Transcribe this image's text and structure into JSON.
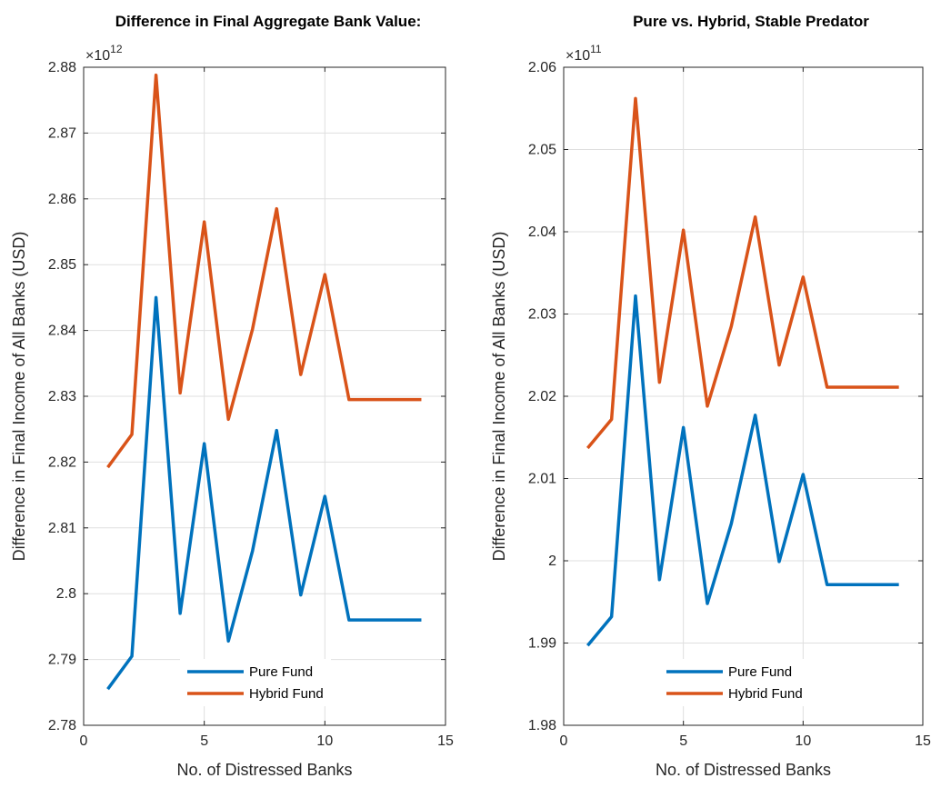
{
  "chart_data": [
    {
      "type": "line",
      "title": "Difference in Final Aggregate Bank Value:",
      "xlabel": "No. of Distressed Banks",
      "ylabel": "Difference in Final Income of All Banks (USD)",
      "exponent_base": "×10",
      "exponent_power": "12",
      "xlim": [
        0,
        15
      ],
      "ylim": [
        2.78,
        2.88
      ],
      "x_ticks": [
        0,
        5,
        10,
        15
      ],
      "y_ticks": [
        2.78,
        2.79,
        2.8,
        2.81,
        2.82,
        2.83,
        2.84,
        2.85,
        2.86,
        2.87,
        2.88
      ],
      "y_tick_labels": [
        "2.78",
        "2.79",
        "2.8",
        "2.81",
        "2.82",
        "2.83",
        "2.84",
        "2.85",
        "2.86",
        "2.87",
        "2.88"
      ],
      "grid": true,
      "legend_position": "bottom-center",
      "x": [
        1,
        2,
        3,
        4,
        5,
        6,
        7,
        8,
        9,
        10,
        11,
        12,
        13,
        14
      ],
      "series": [
        {
          "name": "Pure Fund",
          "color": "#0072BD",
          "values": [
            2.7855,
            2.7905,
            2.845,
            2.797,
            2.8228,
            2.7928,
            2.8065,
            2.8248,
            2.7998,
            2.8148,
            2.796,
            2.796,
            2.796,
            2.796
          ]
        },
        {
          "name": "Hybrid Fund",
          "color": "#D95319",
          "values": [
            2.8192,
            2.8242,
            2.8788,
            2.8305,
            2.8565,
            2.8265,
            2.8402,
            2.8585,
            2.8333,
            2.8485,
            2.8295,
            2.8295,
            2.8295,
            2.8295
          ]
        }
      ]
    },
    {
      "type": "line",
      "title": "Pure vs. Hybrid, Stable Predator",
      "xlabel": "No. of Distressed Banks",
      "ylabel": "Difference in Final Income of All Banks (USD)",
      "exponent_base": "×10",
      "exponent_power": "11",
      "xlim": [
        0,
        15
      ],
      "ylim": [
        1.98,
        2.06
      ],
      "x_ticks": [
        0,
        5,
        10,
        15
      ],
      "y_ticks": [
        1.98,
        1.99,
        2.0,
        2.01,
        2.02,
        2.03,
        2.04,
        2.05,
        2.06
      ],
      "y_tick_labels": [
        "1.98",
        "1.99",
        "2",
        "2.01",
        "2.02",
        "2.03",
        "2.04",
        "2.05",
        "2.06"
      ],
      "grid": true,
      "legend_position": "bottom-center",
      "x": [
        1,
        2,
        3,
        4,
        5,
        6,
        7,
        8,
        9,
        10,
        11,
        12,
        13,
        14
      ],
      "series": [
        {
          "name": "Pure Fund",
          "color": "#0072BD",
          "values": [
            1.9897,
            1.9932,
            2.0322,
            1.9977,
            2.0162,
            1.9948,
            2.0045,
            2.0177,
            1.9999,
            2.0105,
            1.9971,
            1.9971,
            1.9971,
            1.9971
          ]
        },
        {
          "name": "Hybrid Fund",
          "color": "#D95319",
          "values": [
            2.0137,
            2.0172,
            2.0562,
            2.0217,
            2.0402,
            2.0188,
            2.0285,
            2.0418,
            2.0238,
            2.0345,
            2.0211,
            2.0211,
            2.0211,
            2.0211
          ]
        }
      ]
    }
  ]
}
